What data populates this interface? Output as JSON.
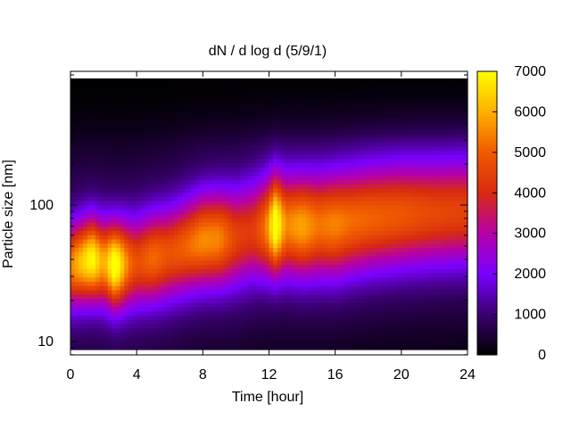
{
  "chart_data": {
    "type": "heatmap",
    "title": "dN / d log d (5/9/1)",
    "xlabel": "Time [hour]",
    "ylabel": "Particle size [nm]",
    "xlim": [
      0,
      24
    ],
    "x_ticks": [
      "0",
      "4",
      "8",
      "12",
      "16",
      "20",
      "24"
    ],
    "y_scale": "log",
    "y_ticks": [
      "10",
      "100"
    ],
    "colorbar": {
      "range": [
        0,
        7000
      ],
      "ticks": [
        "0",
        "1000",
        "2000",
        "3000",
        "4000",
        "5000",
        "6000",
        "7000"
      ],
      "colormap": [
        "#000000",
        "#3a0070",
        "#7a00ff",
        "#b500a8",
        "#d82a10",
        "#f05a00",
        "#ffb000",
        "#ffff00"
      ]
    },
    "mode_diameter_nm": [
      {
        "x": 0,
        "y": 36
      },
      {
        "x": 1.3,
        "y": 40
      },
      {
        "x": 2.7,
        "y": 36
      },
      {
        "x": 4,
        "y": 38
      },
      {
        "x": 6,
        "y": 44
      },
      {
        "x": 8,
        "y": 55
      },
      {
        "x": 10,
        "y": 58
      },
      {
        "x": 12.4,
        "y": 72
      },
      {
        "x": 14,
        "y": 70
      },
      {
        "x": 16,
        "y": 72
      },
      {
        "x": 18,
        "y": 80
      },
      {
        "x": 20,
        "y": 85
      },
      {
        "x": 24,
        "y": 90
      }
    ],
    "peak_concentration": [
      {
        "x": 0,
        "y": 4200
      },
      {
        "x": 1.3,
        "y": 5800
      },
      {
        "x": 2,
        "y": 4500
      },
      {
        "x": 2.7,
        "y": 6200
      },
      {
        "x": 3.5,
        "y": 4000
      },
      {
        "x": 4,
        "y": 3400
      },
      {
        "x": 5,
        "y": 3900
      },
      {
        "x": 6,
        "y": 3500
      },
      {
        "x": 7,
        "y": 3800
      },
      {
        "x": 8,
        "y": 4300
      },
      {
        "x": 9,
        "y": 4200
      },
      {
        "x": 10,
        "y": 3200
      },
      {
        "x": 11,
        "y": 3000
      },
      {
        "x": 11.8,
        "y": 4000
      },
      {
        "x": 12.4,
        "y": 6300
      },
      {
        "x": 13,
        "y": 4200
      },
      {
        "x": 14,
        "y": 4600
      },
      {
        "x": 15,
        "y": 4000
      },
      {
        "x": 16,
        "y": 4200
      },
      {
        "x": 17,
        "y": 3900
      },
      {
        "x": 18,
        "y": 3800
      },
      {
        "x": 20,
        "y": 3600
      },
      {
        "x": 22,
        "y": 3300
      },
      {
        "x": 24,
        "y": 3200
      }
    ]
  }
}
